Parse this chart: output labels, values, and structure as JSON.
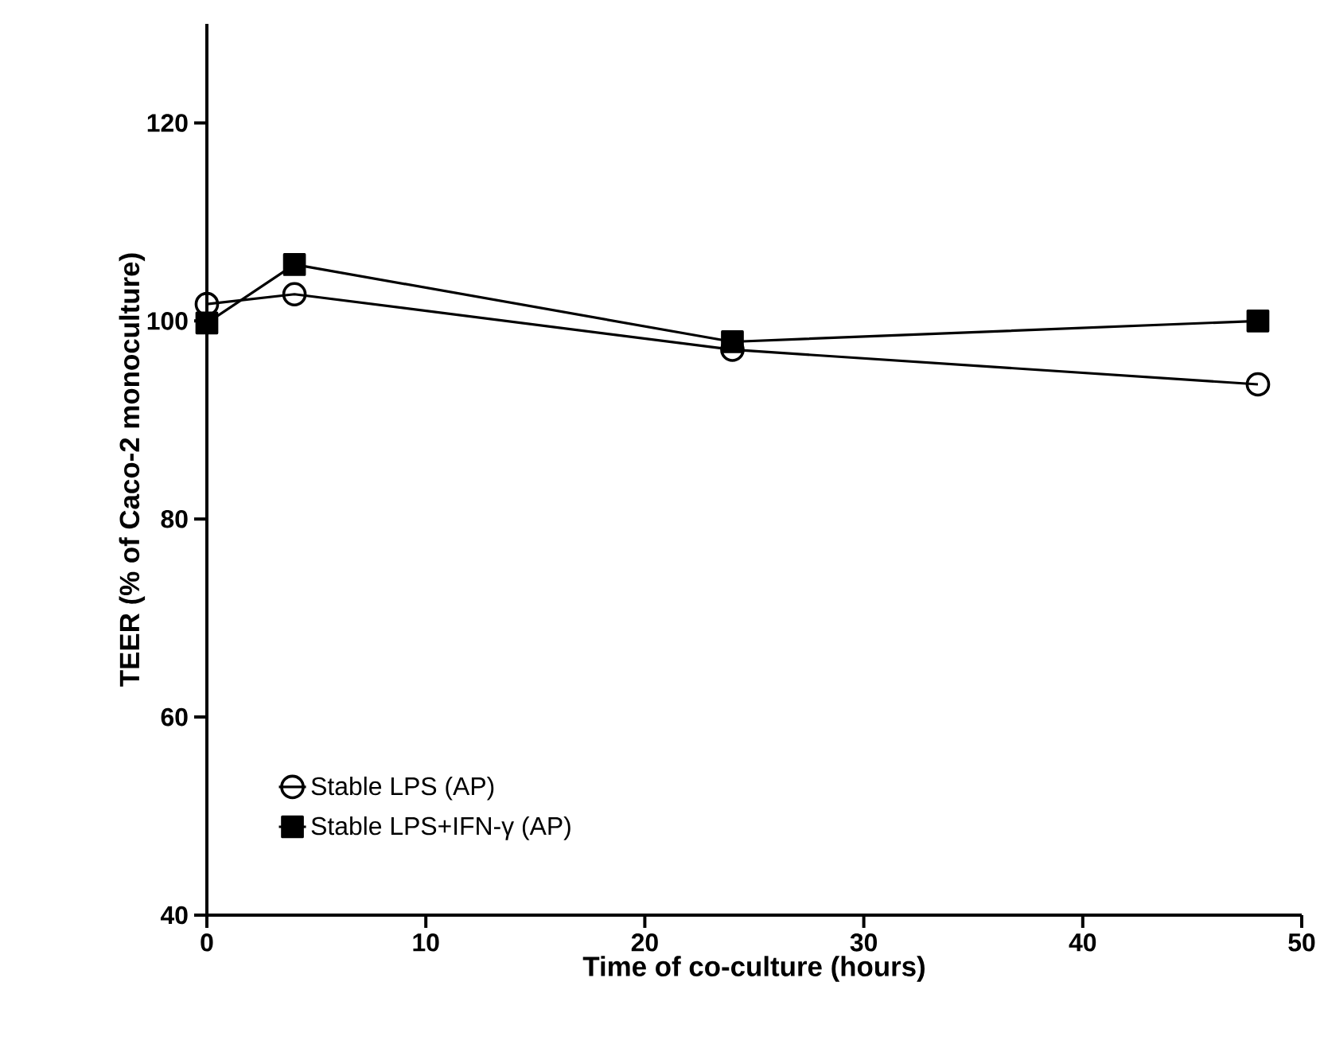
{
  "chart_data": {
    "type": "line",
    "xlabel": "Time of co-culture (hours)",
    "ylabel": "TEER (% of Caco-2 monoculture)",
    "xlim": [
      0,
      50
    ],
    "xticks": [
      0,
      10,
      20,
      30,
      40,
      50
    ],
    "ylim": [
      40,
      130
    ],
    "yticks": [
      40,
      60,
      80,
      100,
      120
    ],
    "legend": "bottom left",
    "grid": false,
    "series": [
      {
        "name": "Stable LPS (AP)",
        "color": "#000000",
        "marker": "circle",
        "x": [
          0,
          4,
          24,
          48
        ],
        "values": [
          101.7,
          102.7,
          97.1,
          93.6
        ]
      },
      {
        "name": "Stable LPS+IFN-γ (AP)",
        "color": "#000000",
        "marker": "square",
        "x": [
          0,
          4,
          24,
          48
        ],
        "values": [
          99.8,
          105.7,
          97.9,
          100.0
        ]
      }
    ]
  }
}
